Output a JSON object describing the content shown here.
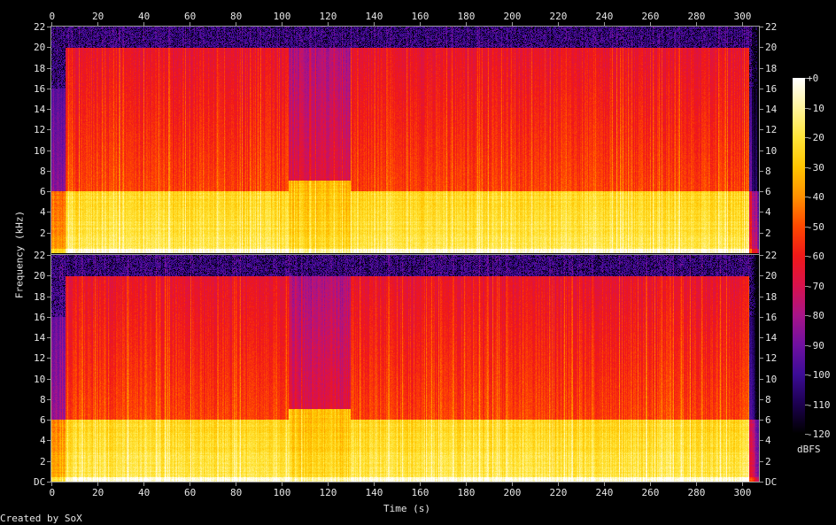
{
  "chart_data": {
    "type": "heatmap",
    "subtype": "spectrogram",
    "xlabel": "Time (s)",
    "ylabel": "Frequency (kHz)",
    "xlim": [
      0,
      307
    ],
    "ylim": [
      0,
      22
    ],
    "x_ticks": [
      0,
      20,
      40,
      60,
      80,
      100,
      120,
      140,
      160,
      180,
      200,
      220,
      240,
      260,
      280,
      300
    ],
    "y_ticks": [
      "DC",
      "2",
      "4",
      "6",
      "8",
      "10",
      "12",
      "14",
      "16",
      "18",
      "20",
      "22"
    ],
    "channels": 2,
    "colorbar": {
      "label": "dBFS",
      "range": [
        -120,
        0
      ],
      "ticks": [
        "+0",
        "-10",
        "-20",
        "-30",
        "-40",
        "-50",
        "-60",
        "-70",
        "-80",
        "-90",
        "-100",
        "-110",
        "-120"
      ]
    },
    "segments_db": [
      {
        "t": [
          0,
          6
        ],
        "low_db": -45,
        "high_db": -95,
        "cutoff_khz": 16
      },
      {
        "t": [
          6,
          103
        ],
        "low_db": -25,
        "high_db": -62,
        "cutoff_khz": 20
      },
      {
        "t": [
          103,
          130
        ],
        "low_db": -32,
        "high_db": -78,
        "cutoff_khz": 20
      },
      {
        "t": [
          130,
          303
        ],
        "low_db": -25,
        "high_db": -62,
        "cutoff_khz": 20
      },
      {
        "t": [
          303,
          307
        ],
        "low_db": -70,
        "high_db": -105,
        "cutoff_khz": 16
      }
    ],
    "colors": [
      "#000000",
      "#1c0050",
      "#3c0c96",
      "#7010a0",
      "#a81488",
      "#d8124c",
      "#f01818",
      "#ff4800",
      "#ff9000",
      "#ffc400",
      "#ffe438",
      "#fff49c",
      "#ffffff"
    ]
  },
  "credit": "Created by SoX"
}
